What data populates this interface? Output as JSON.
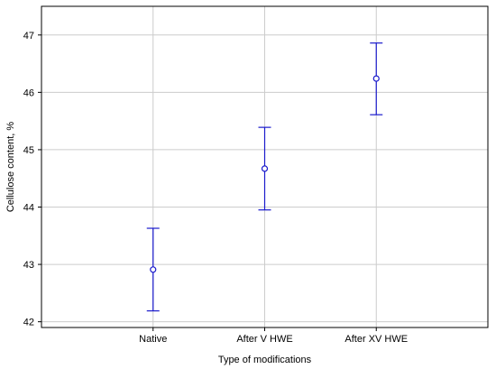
{
  "chart_data": {
    "type": "scatter",
    "title": "",
    "xlabel": "Type of modifications",
    "ylabel": "Cellulose content, %",
    "categories": [
      "Native",
      "After V HWE",
      "After XV HWE"
    ],
    "series": [
      {
        "mean": [
          42.91,
          44.67,
          46.24
        ],
        "lower": [
          42.19,
          43.95,
          45.61
        ],
        "upper": [
          43.63,
          45.39,
          46.86
        ]
      }
    ],
    "ylim": [
      41.9,
      47.5
    ],
    "yticks": [
      42,
      43,
      44,
      45,
      46,
      47
    ],
    "grid": true,
    "colors": {
      "series": "#1a1acc",
      "grid": "#cccccc",
      "axis": "#000000"
    }
  }
}
